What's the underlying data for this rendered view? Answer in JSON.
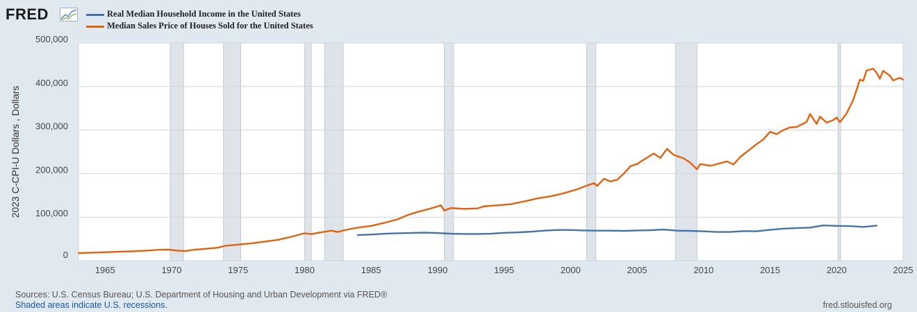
{
  "header": {
    "logo_text": "FRED"
  },
  "legend": [
    {
      "label": "Real Median Household Income in the United States",
      "color": "#4572a7"
    },
    {
      "label": "Median Sales Price of Houses Sold for the United States",
      "color": "#e0620f"
    }
  ],
  "footer": {
    "source": "Sources: U.S. Census Bureau; U.S. Department of Housing and Urban Development via FRED®",
    "recession_note": "Shaded areas indicate U.S. recessions.",
    "site": "fred.stlouisfed.org"
  },
  "chart_data": {
    "type": "line",
    "title": "",
    "xlabel": "",
    "ylabel": "2023 C-CPI-U Dollars , Dollars",
    "xlim": [
      1963,
      2025
    ],
    "ylim": [
      0,
      500000
    ],
    "x_ticks": [
      1965,
      1970,
      1975,
      1980,
      1985,
      1990,
      1995,
      2000,
      2005,
      2010,
      2015,
      2020,
      2025
    ],
    "y_ticks": [
      {
        "value": 0,
        "label": "0"
      },
      {
        "value": 100000,
        "label": "100,000"
      },
      {
        "value": 200000,
        "label": "200,000"
      },
      {
        "value": 300000,
        "label": "300,000"
      },
      {
        "value": 400000,
        "label": "400,000"
      },
      {
        "value": 500000,
        "label": "500,000"
      }
    ],
    "grid": true,
    "legend_position": "top-left",
    "recessions": [
      [
        1969.9,
        1970.9
      ],
      [
        1973.9,
        1975.2
      ],
      [
        1980.0,
        1980.5
      ],
      [
        1981.5,
        1982.9
      ],
      [
        1990.5,
        1991.2
      ],
      [
        2001.2,
        2001.9
      ],
      [
        2007.9,
        2009.5
      ],
      [
        2020.1,
        2020.3
      ]
    ],
    "series": [
      {
        "name": "Real Median Household Income in the United States",
        "color": "#4572a7",
        "points": [
          [
            1984,
            59000
          ],
          [
            1985,
            60000
          ],
          [
            1986,
            62000
          ],
          [
            1987,
            63000
          ],
          [
            1988,
            63500
          ],
          [
            1989,
            64500
          ],
          [
            1990,
            63500
          ],
          [
            1991,
            62000
          ],
          [
            1992,
            61500
          ],
          [
            1993,
            61500
          ],
          [
            1994,
            62000
          ],
          [
            1995,
            64000
          ],
          [
            1996,
            65000
          ],
          [
            1997,
            66500
          ],
          [
            1998,
            69000
          ],
          [
            1999,
            70500
          ],
          [
            2000,
            70500
          ],
          [
            2001,
            69500
          ],
          [
            2002,
            69000
          ],
          [
            2003,
            69000
          ],
          [
            2004,
            68500
          ],
          [
            2005,
            69500
          ],
          [
            2006,
            70000
          ],
          [
            2007,
            71500
          ],
          [
            2008,
            69000
          ],
          [
            2009,
            68500
          ],
          [
            2010,
            67500
          ],
          [
            2011,
            66000
          ],
          [
            2012,
            66000
          ],
          [
            2013,
            68000
          ],
          [
            2014,
            67500
          ],
          [
            2015,
            71000
          ],
          [
            2016,
            73500
          ],
          [
            2017,
            75000
          ],
          [
            2018,
            76000
          ],
          [
            2019,
            81000
          ],
          [
            2020,
            80000
          ],
          [
            2021,
            79500
          ],
          [
            2022,
            77500
          ],
          [
            2023,
            80600
          ]
        ]
      },
      {
        "name": "Median Sales Price of Houses Sold for the United States",
        "color": "#e0620f",
        "points": [
          [
            1963.0,
            17500
          ],
          [
            1964.0,
            18500
          ],
          [
            1965.0,
            19500
          ],
          [
            1966.0,
            20500
          ],
          [
            1967.0,
            21500
          ],
          [
            1968.0,
            23000
          ],
          [
            1969.0,
            25000
          ],
          [
            1969.75,
            25500
          ],
          [
            1970.5,
            23000
          ],
          [
            1971.0,
            22000
          ],
          [
            1971.75,
            25500
          ],
          [
            1972.5,
            27000
          ],
          [
            1973.5,
            30000
          ],
          [
            1974.0,
            34000
          ],
          [
            1975.0,
            37000
          ],
          [
            1976.0,
            40000
          ],
          [
            1977.0,
            44000
          ],
          [
            1978.0,
            48000
          ],
          [
            1979.0,
            55000
          ],
          [
            1980.0,
            63000
          ],
          [
            1980.5,
            61000
          ],
          [
            1981.0,
            64000
          ],
          [
            1982.0,
            69000
          ],
          [
            1982.5,
            66000
          ],
          [
            1983.0,
            70000
          ],
          [
            1984.0,
            76000
          ],
          [
            1985.0,
            80000
          ],
          [
            1986.0,
            87000
          ],
          [
            1987.0,
            95000
          ],
          [
            1987.75,
            105000
          ],
          [
            1988.5,
            112000
          ],
          [
            1989.5,
            120000
          ],
          [
            1990.25,
            127000
          ],
          [
            1990.5,
            115000
          ],
          [
            1991.0,
            121000
          ],
          [
            1992.0,
            119000
          ],
          [
            1993.0,
            120000
          ],
          [
            1993.5,
            125000
          ],
          [
            1994.5,
            127000
          ],
          [
            1995.5,
            130000
          ],
          [
            1996.5,
            136000
          ],
          [
            1997.5,
            143000
          ],
          [
            1998.5,
            148000
          ],
          [
            1999.5,
            155000
          ],
          [
            2000.5,
            164000
          ],
          [
            2001.0,
            170000
          ],
          [
            2001.75,
            178000
          ],
          [
            2002.0,
            172000
          ],
          [
            2002.5,
            188000
          ],
          [
            2003.0,
            182000
          ],
          [
            2003.5,
            186000
          ],
          [
            2004.0,
            200000
          ],
          [
            2004.5,
            217000
          ],
          [
            2005.0,
            222000
          ],
          [
            2005.5,
            232000
          ],
          [
            2006.25,
            246000
          ],
          [
            2006.75,
            236000
          ],
          [
            2007.25,
            257000
          ],
          [
            2007.75,
            243000
          ],
          [
            2008.5,
            235000
          ],
          [
            2009.0,
            225000
          ],
          [
            2009.5,
            210000
          ],
          [
            2009.75,
            222000
          ],
          [
            2010.5,
            218000
          ],
          [
            2011.0,
            222000
          ],
          [
            2011.75,
            228000
          ],
          [
            2012.25,
            221000
          ],
          [
            2012.75,
            238000
          ],
          [
            2013.5,
            256000
          ],
          [
            2014.0,
            268000
          ],
          [
            2014.5,
            279000
          ],
          [
            2015.0,
            296000
          ],
          [
            2015.5,
            291000
          ],
          [
            2016.0,
            300000
          ],
          [
            2016.5,
            306000
          ],
          [
            2017.0,
            307000
          ],
          [
            2017.75,
            319000
          ],
          [
            2018.0,
            337000
          ],
          [
            2018.5,
            314000
          ],
          [
            2018.75,
            331000
          ],
          [
            2019.25,
            317000
          ],
          [
            2019.75,
            323000
          ],
          [
            2020.0,
            329000
          ],
          [
            2020.25,
            318000
          ],
          [
            2020.75,
            338000
          ],
          [
            2021.25,
            369000
          ],
          [
            2021.75,
            416000
          ],
          [
            2022.0,
            413000
          ],
          [
            2022.25,
            437000
          ],
          [
            2022.75,
            441000
          ],
          [
            2023.0,
            432000
          ],
          [
            2023.25,
            418000
          ],
          [
            2023.5,
            436000
          ],
          [
            2024.0,
            425000
          ],
          [
            2024.25,
            414000
          ],
          [
            2024.75,
            420000
          ],
          [
            2025.0,
            416000
          ]
        ]
      }
    ]
  }
}
